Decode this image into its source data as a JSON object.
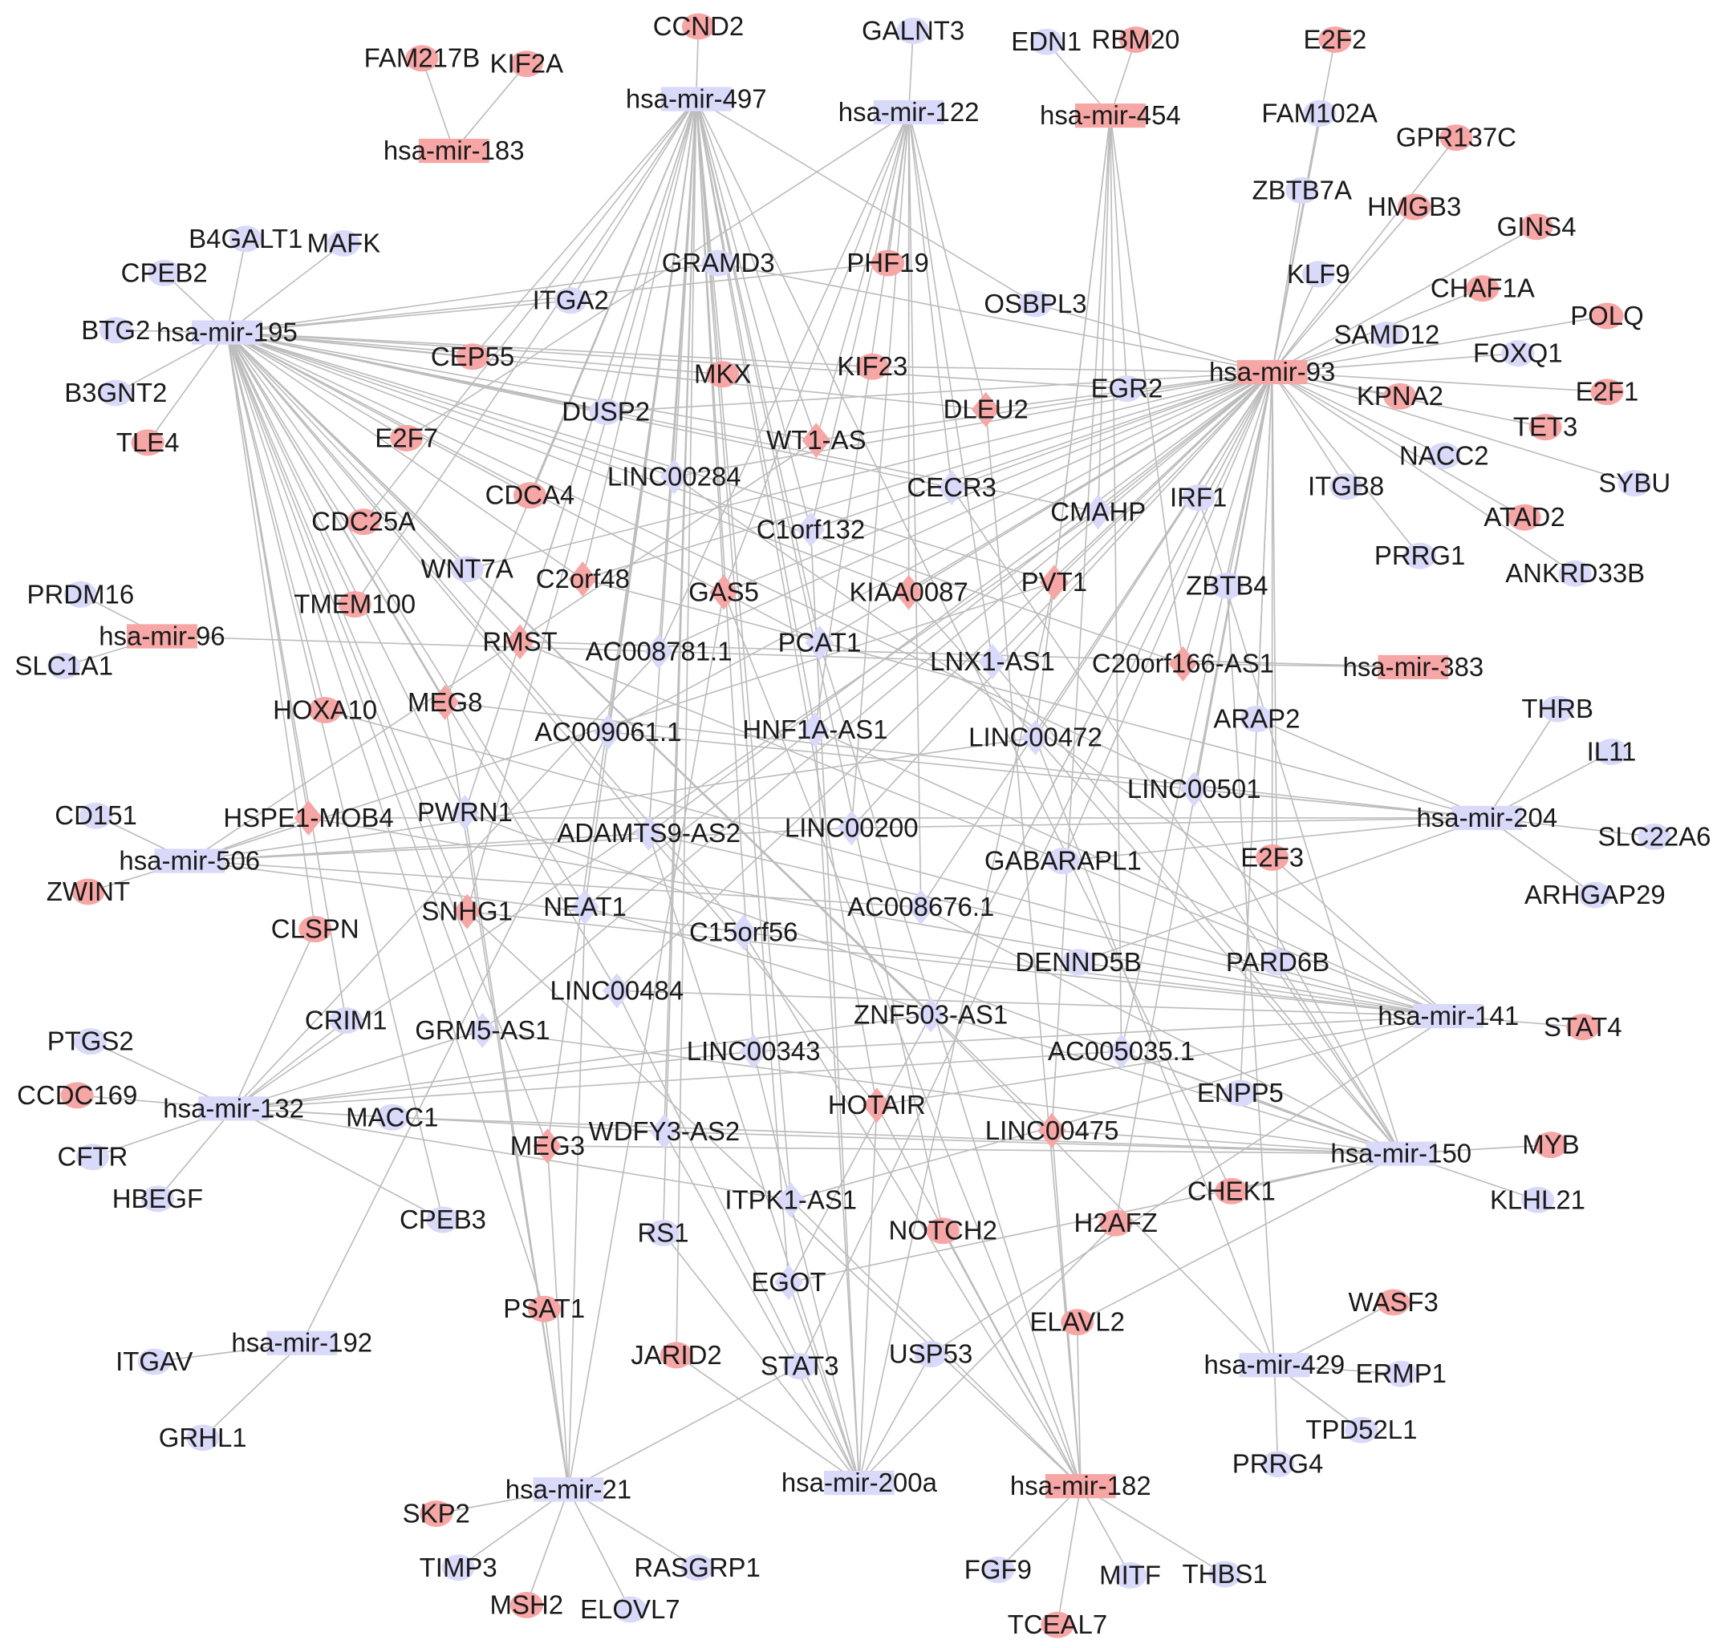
{
  "legend_colors": {
    "up": "#f7a6a6",
    "down": "#d9d9fa",
    "edge": "#bdbdbd"
  },
  "shapes": {
    "mirna": "rectangle",
    "lncrna": "diamond",
    "mrna": "ellipse"
  },
  "nodes": [
    {
      "id": "hsa-mir-497",
      "type": "mirna",
      "reg": "down"
    },
    {
      "id": "hsa-mir-122",
      "type": "mirna",
      "reg": "down"
    },
    {
      "id": "hsa-mir-454",
      "type": "mirna",
      "reg": "up"
    },
    {
      "id": "hsa-mir-183",
      "type": "mirna",
      "reg": "up"
    },
    {
      "id": "hsa-mir-195",
      "type": "mirna",
      "reg": "down"
    },
    {
      "id": "hsa-mir-93",
      "type": "mirna",
      "reg": "up"
    },
    {
      "id": "hsa-mir-96",
      "type": "mirna",
      "reg": "up"
    },
    {
      "id": "hsa-mir-383",
      "type": "mirna",
      "reg": "up"
    },
    {
      "id": "hsa-mir-204",
      "type": "mirna",
      "reg": "down"
    },
    {
      "id": "hsa-mir-506",
      "type": "mirna",
      "reg": "down"
    },
    {
      "id": "hsa-mir-141",
      "type": "mirna",
      "reg": "down"
    },
    {
      "id": "hsa-mir-132",
      "type": "mirna",
      "reg": "down"
    },
    {
      "id": "hsa-mir-150",
      "type": "mirna",
      "reg": "down"
    },
    {
      "id": "hsa-mir-192",
      "type": "mirna",
      "reg": "down"
    },
    {
      "id": "hsa-mir-429",
      "type": "mirna",
      "reg": "down"
    },
    {
      "id": "hsa-mir-21",
      "type": "mirna",
      "reg": "down"
    },
    {
      "id": "hsa-mir-200a",
      "type": "mirna",
      "reg": "down"
    },
    {
      "id": "hsa-mir-182",
      "type": "mirna",
      "reg": "up"
    },
    {
      "id": "WT1-AS",
      "type": "lncrna",
      "reg": "up",
      "links": [
        "497",
        "122",
        "195",
        "93",
        "506"
      ]
    },
    {
      "id": "LINC00284",
      "type": "lncrna",
      "reg": "down",
      "links": [
        "497",
        "195",
        "93",
        "141"
      ]
    },
    {
      "id": "C1orf132",
      "type": "lncrna",
      "reg": "down",
      "links": [
        "497",
        "122",
        "93",
        "200a"
      ]
    },
    {
      "id": "CMAHP",
      "type": "lncrna",
      "reg": "down",
      "links": [
        "454",
        "93",
        "195",
        "132"
      ]
    },
    {
      "id": "C2orf48",
      "type": "lncrna",
      "reg": "up",
      "links": [
        "497",
        "195",
        "93",
        "204"
      ]
    },
    {
      "id": "GAS5",
      "type": "lncrna",
      "reg": "up",
      "links": [
        "497",
        "122",
        "93",
        "21",
        "182"
      ]
    },
    {
      "id": "KIAA0087",
      "type": "lncrna",
      "reg": "up",
      "links": [
        "122",
        "195",
        "93",
        "150"
      ]
    },
    {
      "id": "PVT1",
      "type": "lncrna",
      "reg": "up",
      "links": [
        "454",
        "93",
        "195",
        "506",
        "200a"
      ]
    },
    {
      "id": "RMST",
      "type": "lncrna",
      "reg": "up",
      "links": [
        "497",
        "195",
        "141",
        "383"
      ]
    },
    {
      "id": "AC008781.1",
      "type": "lncrna",
      "reg": "down",
      "links": [
        "497",
        "122",
        "93",
        "132"
      ]
    },
    {
      "id": "PCAT1",
      "type": "lncrna",
      "reg": "down",
      "links": [
        "497",
        "195",
        "93",
        "182"
      ]
    },
    {
      "id": "LNX1-AS1",
      "type": "lncrna",
      "reg": "down",
      "links": [
        "122",
        "93",
        "96",
        "150"
      ]
    },
    {
      "id": "C20orf166-AS1",
      "type": "lncrna",
      "reg": "up",
      "links": [
        "93",
        "383",
        "454",
        "195"
      ]
    },
    {
      "id": "MEG8",
      "type": "lncrna",
      "reg": "up",
      "links": [
        "497",
        "195",
        "204",
        "21"
      ]
    },
    {
      "id": "AC009061.1",
      "type": "lncrna",
      "reg": "down",
      "links": [
        "497",
        "93",
        "204",
        "192"
      ]
    },
    {
      "id": "HNF1A-AS1",
      "type": "lncrna",
      "reg": "down",
      "links": [
        "497",
        "122",
        "141",
        "200a"
      ]
    },
    {
      "id": "LINC00472",
      "type": "lncrna",
      "reg": "down",
      "links": [
        "454",
        "93",
        "506",
        "429"
      ]
    },
    {
      "id": "LINC00501",
      "type": "lncrna",
      "reg": "down",
      "links": [
        "93",
        "195",
        "204",
        "150"
      ]
    },
    {
      "id": "HSPE1-MOB4",
      "type": "lncrna",
      "reg": "up",
      "links": [
        "195",
        "506",
        "141",
        "204"
      ]
    },
    {
      "id": "PWRN1",
      "type": "lncrna",
      "reg": "down",
      "links": [
        "497",
        "195",
        "150",
        "21"
      ]
    },
    {
      "id": "ADAMTS9-AS2",
      "type": "lncrna",
      "reg": "down",
      "links": [
        "497",
        "93",
        "506",
        "141",
        "200a"
      ]
    },
    {
      "id": "LINC00200",
      "type": "lncrna",
      "reg": "down",
      "links": [
        "122",
        "93",
        "506",
        "204"
      ]
    },
    {
      "id": "SNHG1",
      "type": "lncrna",
      "reg": "up",
      "links": [
        "195",
        "497",
        "141",
        "182"
      ]
    },
    {
      "id": "NEAT1",
      "type": "lncrna",
      "reg": "down",
      "links": [
        "497",
        "195",
        "93",
        "150",
        "21"
      ]
    },
    {
      "id": "C15orf56",
      "type": "lncrna",
      "reg": "down",
      "links": [
        "506",
        "141",
        "195",
        "182"
      ]
    },
    {
      "id": "AC008676.1",
      "type": "lncrna",
      "reg": "down",
      "links": [
        "122",
        "93",
        "506",
        "150"
      ]
    },
    {
      "id": "LINC00484",
      "type": "lncrna",
      "reg": "down",
      "links": [
        "195",
        "93",
        "141",
        "200a"
      ]
    },
    {
      "id": "GRM5-AS1",
      "type": "lncrna",
      "reg": "down",
      "links": [
        "195",
        "93",
        "132",
        "150"
      ]
    },
    {
      "id": "ZNF503-AS1",
      "type": "lncrna",
      "reg": "down",
      "links": [
        "93",
        "195",
        "132",
        "429"
      ]
    },
    {
      "id": "LINC00343",
      "type": "lncrna",
      "reg": "down",
      "links": [
        "497",
        "141",
        "132",
        "200a"
      ]
    },
    {
      "id": "AC005035.1",
      "type": "lncrna",
      "reg": "down",
      "links": [
        "454",
        "93",
        "132",
        "150"
      ]
    },
    {
      "id": "HOTAIR",
      "type": "lncrna",
      "reg": "up",
      "links": [
        "497",
        "195",
        "141",
        "182",
        "200a"
      ]
    },
    {
      "id": "LINC00475",
      "type": "lncrna",
      "reg": "up",
      "links": [
        "454",
        "195",
        "150",
        "182"
      ]
    },
    {
      "id": "MEG3",
      "type": "lncrna",
      "reg": "up",
      "links": [
        "195",
        "497",
        "21",
        "150"
      ]
    },
    {
      "id": "WDFY3-AS2",
      "type": "lncrna",
      "reg": "down",
      "links": [
        "497",
        "132",
        "150",
        "200a"
      ]
    },
    {
      "id": "ITPK1-AS1",
      "type": "lncrna",
      "reg": "down",
      "links": [
        "497",
        "132",
        "141",
        "182"
      ]
    },
    {
      "id": "CECR3",
      "type": "lncrna",
      "reg": "down",
      "links": [
        "122",
        "195",
        "93",
        "150"
      ]
    },
    {
      "id": "DLEU2",
      "type": "lncrna",
      "reg": "up",
      "links": [
        "122",
        "195",
        "93",
        "182"
      ]
    },
    {
      "id": "EGOT",
      "type": "lncrna",
      "reg": "down",
      "links": [
        "497",
        "93",
        "200a",
        "150"
      ]
    },
    {
      "id": "CCND2",
      "type": "mrna",
      "reg": "up",
      "links": [
        "497"
      ]
    },
    {
      "id": "FAM217B",
      "type": "mrna",
      "reg": "up",
      "links": [
        "183"
      ]
    },
    {
      "id": "KIF2A",
      "type": "mrna",
      "reg": "up",
      "links": [
        "183"
      ]
    },
    {
      "id": "GALNT3",
      "type": "mrna",
      "reg": "down",
      "links": [
        "122"
      ]
    },
    {
      "id": "EDN1",
      "type": "mrna",
      "reg": "down",
      "links": [
        "454"
      ]
    },
    {
      "id": "RBM20",
      "type": "mrna",
      "reg": "up",
      "links": [
        "454"
      ]
    },
    {
      "id": "E2F2",
      "type": "mrna",
      "reg": "up",
      "links": [
        "93"
      ]
    },
    {
      "id": "FAM102A",
      "type": "mrna",
      "reg": "down",
      "links": [
        "93"
      ]
    },
    {
      "id": "GPR137C",
      "type": "mrna",
      "reg": "up",
      "links": [
        "93"
      ]
    },
    {
      "id": "ZBTB7A",
      "type": "mrna",
      "reg": "down",
      "links": [
        "93"
      ]
    },
    {
      "id": "HMGB3",
      "type": "mrna",
      "reg": "up",
      "links": [
        "93"
      ]
    },
    {
      "id": "GINS4",
      "type": "mrna",
      "reg": "up",
      "links": [
        "93"
      ]
    },
    {
      "id": "CHAF1A",
      "type": "mrna",
      "reg": "up",
      "links": [
        "93"
      ]
    },
    {
      "id": "KLF9",
      "type": "mrna",
      "reg": "down",
      "links": [
        "93"
      ]
    },
    {
      "id": "POLQ",
      "type": "mrna",
      "reg": "up",
      "links": [
        "93"
      ]
    },
    {
      "id": "SAMD12",
      "type": "mrna",
      "reg": "down",
      "links": [
        "93"
      ]
    },
    {
      "id": "FOXQ1",
      "type": "mrna",
      "reg": "down",
      "links": [
        "93"
      ]
    },
    {
      "id": "KPNA2",
      "type": "mrna",
      "reg": "up",
      "links": [
        "93"
      ]
    },
    {
      "id": "E2F1",
      "type": "mrna",
      "reg": "up",
      "links": [
        "93"
      ]
    },
    {
      "id": "TET3",
      "type": "mrna",
      "reg": "up",
      "links": [
        "93"
      ]
    },
    {
      "id": "NACC2",
      "type": "mrna",
      "reg": "down",
      "links": [
        "93"
      ]
    },
    {
      "id": "SYBU",
      "type": "mrna",
      "reg": "down",
      "links": [
        "93"
      ]
    },
    {
      "id": "ITGB8",
      "type": "mrna",
      "reg": "down",
      "links": [
        "93"
      ]
    },
    {
      "id": "ATAD2",
      "type": "mrna",
      "reg": "up",
      "links": [
        "93"
      ]
    },
    {
      "id": "PRRG1",
      "type": "mrna",
      "reg": "down",
      "links": [
        "93"
      ]
    },
    {
      "id": "ANKRD33B",
      "type": "mrna",
      "reg": "down",
      "links": [
        "93"
      ]
    },
    {
      "id": "B4GALT1",
      "type": "mrna",
      "reg": "down",
      "links": [
        "195"
      ]
    },
    {
      "id": "MAFK",
      "type": "mrna",
      "reg": "down",
      "links": [
        "195"
      ]
    },
    {
      "id": "CPEB2",
      "type": "mrna",
      "reg": "down",
      "links": [
        "195"
      ]
    },
    {
      "id": "BTG2",
      "type": "mrna",
      "reg": "down",
      "links": [
        "195"
      ]
    },
    {
      "id": "B3GNT2",
      "type": "mrna",
      "reg": "down",
      "links": [
        "195"
      ]
    },
    {
      "id": "TLE4",
      "type": "mrna",
      "reg": "up",
      "links": [
        "195"
      ]
    },
    {
      "id": "GRAMD3",
      "type": "mrna",
      "reg": "down",
      "links": [
        "195",
        "93"
      ]
    },
    {
      "id": "PHF19",
      "type": "mrna",
      "reg": "up",
      "links": [
        "195",
        "122"
      ]
    },
    {
      "id": "ITGA2",
      "type": "mrna",
      "reg": "down",
      "links": [
        "195",
        "497"
      ]
    },
    {
      "id": "OSBPL3",
      "type": "mrna",
      "reg": "down",
      "links": [
        "497",
        "93"
      ]
    },
    {
      "id": "CEP55",
      "type": "mrna",
      "reg": "up",
      "links": [
        "195",
        "497"
      ]
    },
    {
      "id": "MKX",
      "type": "mrna",
      "reg": "up",
      "links": [
        "195",
        "497"
      ]
    },
    {
      "id": "KIF23",
      "type": "mrna",
      "reg": "up",
      "links": [
        "195",
        "93"
      ]
    },
    {
      "id": "EGR2",
      "type": "mrna",
      "reg": "down",
      "links": [
        "195",
        "454"
      ]
    },
    {
      "id": "DUSP2",
      "type": "mrna",
      "reg": "down",
      "links": [
        "195",
        "93"
      ]
    },
    {
      "id": "E2F7",
      "type": "mrna",
      "reg": "up",
      "links": [
        "195",
        "122"
      ]
    },
    {
      "id": "CDCA4",
      "type": "mrna",
      "reg": "up",
      "links": [
        "195",
        "497"
      ]
    },
    {
      "id": "CDC25A",
      "type": "mrna",
      "reg": "up",
      "links": [
        "195",
        "497"
      ]
    },
    {
      "id": "IRF1",
      "type": "mrna",
      "reg": "down",
      "links": [
        "93",
        "150"
      ]
    },
    {
      "id": "ZBTB4",
      "type": "mrna",
      "reg": "down",
      "links": [
        "93",
        "429"
      ]
    },
    {
      "id": "PRDM16",
      "type": "mrna",
      "reg": "down",
      "links": [
        "96"
      ]
    },
    {
      "id": "SLC1A1",
      "type": "mrna",
      "reg": "down",
      "links": [
        "96"
      ]
    },
    {
      "id": "TMEM100",
      "type": "mrna",
      "reg": "up",
      "links": [
        "195",
        "497"
      ]
    },
    {
      "id": "WNT7A",
      "type": "mrna",
      "reg": "down",
      "links": [
        "195",
        "93"
      ]
    },
    {
      "id": "HOXA10",
      "type": "mrna",
      "reg": "up",
      "links": [
        "195",
        "141"
      ]
    },
    {
      "id": "ARAP2",
      "type": "mrna",
      "reg": "down",
      "links": [
        "204",
        "93"
      ]
    },
    {
      "id": "THRB",
      "type": "mrna",
      "reg": "down",
      "links": [
        "204"
      ]
    },
    {
      "id": "IL11",
      "type": "mrna",
      "reg": "down",
      "links": [
        "204"
      ]
    },
    {
      "id": "SLC22A6",
      "type": "mrna",
      "reg": "down",
      "links": [
        "204"
      ]
    },
    {
      "id": "ARHGAP29",
      "type": "mrna",
      "reg": "down",
      "links": [
        "204"
      ]
    },
    {
      "id": "CD151",
      "type": "mrna",
      "reg": "down",
      "links": [
        "506"
      ]
    },
    {
      "id": "ZWINT",
      "type": "mrna",
      "reg": "up",
      "links": [
        "506"
      ]
    },
    {
      "id": "CLSPN",
      "type": "mrna",
      "reg": "up",
      "links": [
        "195",
        "132"
      ]
    },
    {
      "id": "GABARAPL1",
      "type": "mrna",
      "reg": "down",
      "links": [
        "93",
        "204"
      ]
    },
    {
      "id": "E2F3",
      "type": "mrna",
      "reg": "up",
      "links": [
        "93",
        "141"
      ]
    },
    {
      "id": "DENND5B",
      "type": "mrna",
      "reg": "down",
      "links": [
        "204",
        "141"
      ]
    },
    {
      "id": "PARD6B",
      "type": "mrna",
      "reg": "down",
      "links": [
        "93",
        "150"
      ]
    },
    {
      "id": "STAT4",
      "type": "mrna",
      "reg": "up",
      "links": [
        "141"
      ]
    },
    {
      "id": "CRIM1",
      "type": "mrna",
      "reg": "down",
      "links": [
        "132",
        "195"
      ]
    },
    {
      "id": "PTGS2",
      "type": "mrna",
      "reg": "down",
      "links": [
        "132"
      ]
    },
    {
      "id": "CCDC169",
      "type": "mrna",
      "reg": "up",
      "links": [
        "132"
      ]
    },
    {
      "id": "CFTR",
      "type": "mrna",
      "reg": "down",
      "links": [
        "132"
      ]
    },
    {
      "id": "HBEGF",
      "type": "mrna",
      "reg": "down",
      "links": [
        "132"
      ]
    },
    {
      "id": "MACC1",
      "type": "mrna",
      "reg": "down",
      "links": [
        "132",
        "150"
      ]
    },
    {
      "id": "ENPP5",
      "type": "mrna",
      "reg": "down",
      "links": [
        "150",
        "93"
      ]
    },
    {
      "id": "MYB",
      "type": "mrna",
      "reg": "up",
      "links": [
        "150"
      ]
    },
    {
      "id": "KLHL21",
      "type": "mrna",
      "reg": "down",
      "links": [
        "150"
      ]
    },
    {
      "id": "CHEK1",
      "type": "mrna",
      "reg": "up",
      "links": [
        "150",
        "497"
      ]
    },
    {
      "id": "CPEB3",
      "type": "mrna",
      "reg": "down",
      "links": [
        "195",
        "132"
      ]
    },
    {
      "id": "RS1",
      "type": "mrna",
      "reg": "down",
      "links": [
        "200a",
        "497"
      ]
    },
    {
      "id": "NOTCH2",
      "type": "mrna",
      "reg": "up",
      "links": [
        "182",
        "497"
      ]
    },
    {
      "id": "H2AFZ",
      "type": "mrna",
      "reg": "up",
      "links": [
        "200a",
        "93"
      ]
    },
    {
      "id": "PSAT1",
      "type": "mrna",
      "reg": "up",
      "links": [
        "21",
        "195"
      ]
    },
    {
      "id": "ELAVL2",
      "type": "mrna",
      "reg": "up",
      "links": [
        "182",
        "150"
      ]
    },
    {
      "id": "WASF3",
      "type": "mrna",
      "reg": "up",
      "links": [
        "429"
      ]
    },
    {
      "id": "ERMP1",
      "type": "mrna",
      "reg": "down",
      "links": [
        "429"
      ]
    },
    {
      "id": "TPD52L1",
      "type": "mrna",
      "reg": "down",
      "links": [
        "429"
      ]
    },
    {
      "id": "PRRG4",
      "type": "mrna",
      "reg": "down",
      "links": [
        "429"
      ]
    },
    {
      "id": "ITGAV",
      "type": "mrna",
      "reg": "down",
      "links": [
        "192"
      ]
    },
    {
      "id": "GRHL1",
      "type": "mrna",
      "reg": "down",
      "links": [
        "192"
      ]
    },
    {
      "id": "JARID2",
      "type": "mrna",
      "reg": "up",
      "links": [
        "200a",
        "497"
      ]
    },
    {
      "id": "STAT3",
      "type": "mrna",
      "reg": "down",
      "links": [
        "21",
        "93"
      ]
    },
    {
      "id": "USP53",
      "type": "mrna",
      "reg": "down",
      "links": [
        "200a",
        "141"
      ]
    },
    {
      "id": "SKP2",
      "type": "mrna",
      "reg": "up",
      "links": [
        "21"
      ]
    },
    {
      "id": "TIMP3",
      "type": "mrna",
      "reg": "down",
      "links": [
        "21"
      ]
    },
    {
      "id": "MSH2",
      "type": "mrna",
      "reg": "up",
      "links": [
        "21"
      ]
    },
    {
      "id": "ELOVL7",
      "type": "mrna",
      "reg": "down",
      "links": [
        "21"
      ]
    },
    {
      "id": "RASGRP1",
      "type": "mrna",
      "reg": "down",
      "links": [
        "21"
      ]
    },
    {
      "id": "FGF9",
      "type": "mrna",
      "reg": "down",
      "links": [
        "182"
      ]
    },
    {
      "id": "MITF",
      "type": "mrna",
      "reg": "down",
      "links": [
        "182"
      ]
    },
    {
      "id": "THBS1",
      "type": "mrna",
      "reg": "down",
      "links": [
        "182"
      ]
    },
    {
      "id": "TCEAL7",
      "type": "mrna",
      "reg": "up",
      "links": [
        "182"
      ]
    }
  ]
}
